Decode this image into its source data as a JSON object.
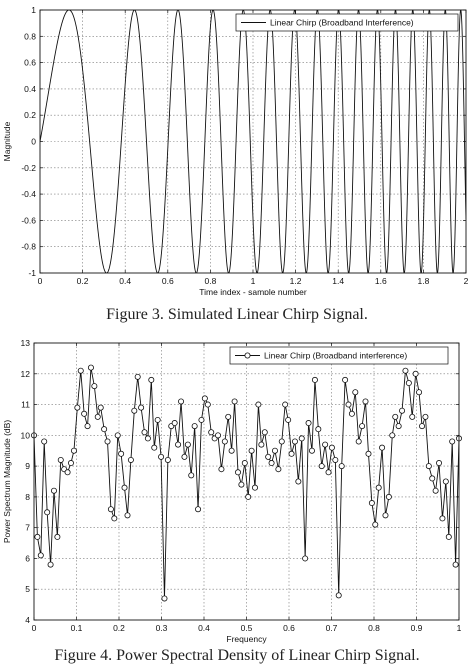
{
  "figures": [
    {
      "caption": "Figure 3.  Simulated Linear Chirp Signal.",
      "chart_data": {
        "type": "line",
        "title": "",
        "xlabel": "Time index - sample number",
        "ylabel": "Magnitude",
        "xlim": [
          0,
          2
        ],
        "ylim": [
          -1,
          1
        ],
        "x_ticks": [
          "0",
          "0.2",
          "0.4",
          "0.6",
          "0.8",
          "1",
          "1.2",
          "1.4",
          "1.6",
          "1.8",
          "2"
        ],
        "y_ticks": [
          "1",
          "0.8",
          "0.6",
          "0.4",
          "0.2",
          "0",
          "-0.2",
          "-0.4",
          "-0.6",
          "-0.8",
          "-1"
        ],
        "grid": true,
        "legend_position": "top-right",
        "series": [
          {
            "name": "Linear Chirp (Broadband Interference)",
            "function": "sin(2*pi*(1.4*t + 3.2*t^2))",
            "line_color": "#111111",
            "marker": "none"
          }
        ]
      }
    },
    {
      "caption": "Figure 4.  Power Spectral Density of Linear Chirp Signal.",
      "chart_data": {
        "type": "line",
        "title": "",
        "xlabel": "Frequency",
        "ylabel": "Power Spectrum Magnitude (dB)",
        "xlim": [
          0,
          1
        ],
        "ylim": [
          4,
          13
        ],
        "x_ticks": [
          "0",
          "0.1",
          "0.2",
          "0.3",
          "0.4",
          "0.5",
          "0.6",
          "0.7",
          "0.8",
          "0.9",
          "1"
        ],
        "y_ticks": [
          "13",
          "12",
          "11",
          "10",
          "9",
          "8",
          "7",
          "6",
          "5",
          "4"
        ],
        "grid": true,
        "legend_position": "top-right",
        "series": [
          {
            "name": "Linear Chirp (Broadband interference)",
            "line_color": "#111111",
            "marker": "circle",
            "x": [
              0.0,
              0.008,
              0.016,
              0.024,
              0.031,
              0.039,
              0.047,
              0.055,
              0.063,
              0.071,
              0.079,
              0.087,
              0.094,
              0.102,
              0.11,
              0.118,
              0.126,
              0.134,
              0.142,
              0.15,
              0.157,
              0.165,
              0.173,
              0.181,
              0.189,
              0.197,
              0.205,
              0.213,
              0.22,
              0.228,
              0.236,
              0.244,
              0.252,
              0.26,
              0.268,
              0.276,
              0.283,
              0.291,
              0.299,
              0.307,
              0.315,
              0.323,
              0.331,
              0.339,
              0.346,
              0.354,
              0.362,
              0.37,
              0.378,
              0.386,
              0.394,
              0.402,
              0.409,
              0.417,
              0.425,
              0.433,
              0.441,
              0.449,
              0.457,
              0.465,
              0.472,
              0.48,
              0.488,
              0.496,
              0.504,
              0.512,
              0.52,
              0.528,
              0.535,
              0.543,
              0.551,
              0.559,
              0.567,
              0.575,
              0.583,
              0.591,
              0.598,
              0.606,
              0.614,
              0.622,
              0.63,
              0.638,
              0.646,
              0.654,
              0.661,
              0.669,
              0.677,
              0.685,
              0.693,
              0.701,
              0.709,
              0.717,
              0.724,
              0.732,
              0.74,
              0.748,
              0.756,
              0.764,
              0.772,
              0.78,
              0.787,
              0.795,
              0.803,
              0.811,
              0.819,
              0.827,
              0.835,
              0.843,
              0.85,
              0.858,
              0.866,
              0.874,
              0.882,
              0.89,
              0.898,
              0.906,
              0.913,
              0.921,
              0.929,
              0.937,
              0.945,
              0.953,
              0.961,
              0.969,
              0.976,
              0.984,
              0.992,
              1.0
            ],
            "values": [
              10.0,
              6.7,
              6.1,
              9.8,
              7.5,
              5.8,
              8.2,
              6.7,
              9.2,
              8.9,
              8.8,
              9.1,
              9.5,
              10.9,
              12.1,
              10.7,
              10.3,
              12.2,
              11.6,
              10.6,
              10.9,
              10.2,
              9.8,
              7.6,
              7.3,
              10.0,
              9.4,
              8.3,
              7.4,
              9.2,
              10.8,
              11.9,
              10.9,
              10.1,
              9.9,
              11.8,
              9.6,
              10.5,
              9.3,
              4.7,
              9.2,
              10.3,
              10.4,
              9.7,
              11.1,
              9.3,
              9.7,
              8.7,
              10.3,
              7.6,
              10.5,
              11.2,
              11.0,
              10.1,
              9.9,
              10.0,
              8.9,
              9.8,
              10.6,
              9.5,
              11.1,
              8.8,
              8.4,
              9.1,
              8.0,
              9.5,
              8.3,
              11.0,
              9.7,
              10.1,
              9.3,
              9.1,
              9.5,
              8.9,
              9.8,
              11.0,
              10.5,
              9.4,
              9.8,
              8.5,
              9.9,
              6.0,
              10.4,
              9.5,
              11.8,
              10.2,
              9.0,
              9.7,
              8.8,
              9.6,
              9.2,
              4.8,
              9.0,
              11.8,
              11.0,
              10.7,
              11.4,
              9.8,
              10.3,
              11.1,
              9.4,
              7.8,
              7.1,
              8.3,
              9.6,
              7.4,
              8.0,
              10.0,
              10.6,
              10.3,
              10.8,
              12.1,
              11.7,
              10.6,
              12.0,
              11.4,
              10.3,
              10.6,
              9.0,
              8.6,
              8.2,
              9.1,
              7.3,
              8.5,
              6.7,
              9.8,
              5.8,
              9.9
            ]
          }
        ]
      }
    }
  ]
}
